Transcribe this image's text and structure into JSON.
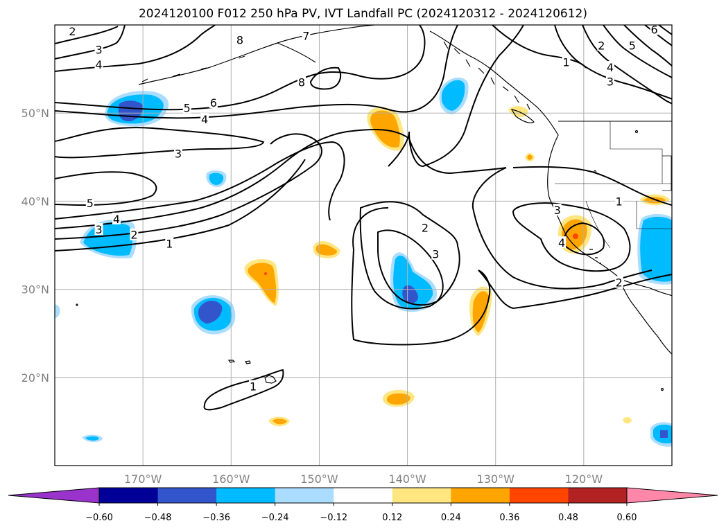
{
  "title": "2024120100 F012 250 hPa PV, IVT Landfall PC (2024120312 - 2024120612)",
  "map": {
    "lon_range": [
      -180,
      -110
    ],
    "lat_range": [
      10,
      60
    ],
    "lon_ticks": [
      {
        "lon": -170,
        "label": "170°W"
      },
      {
        "lon": -160,
        "label": "160°W"
      },
      {
        "lon": -150,
        "label": "150°W"
      },
      {
        "lon": -140,
        "label": "140°W"
      },
      {
        "lon": -130,
        "label": "130°W"
      },
      {
        "lon": -120,
        "label": "120°W"
      }
    ],
    "lat_ticks": [
      {
        "lat": 20,
        "label": "20°N"
      },
      {
        "lat": 30,
        "label": "30°N"
      },
      {
        "lat": 40,
        "label": "40°N"
      },
      {
        "lat": 50,
        "label": "50°N"
      }
    ],
    "grid": true,
    "contour_labels": [
      {
        "text": "2",
        "lon": -178,
        "lat": 59.3
      },
      {
        "text": "3",
        "lon": -175,
        "lat": 57.2
      },
      {
        "text": "4",
        "lon": -175,
        "lat": 55.5
      },
      {
        "text": "8",
        "lon": -159,
        "lat": 58.3
      },
      {
        "text": "7",
        "lon": -151.5,
        "lat": 58.8
      },
      {
        "text": "8",
        "lon": -152,
        "lat": 53.5
      },
      {
        "text": "6",
        "lon": -162,
        "lat": 51.2
      },
      {
        "text": "5",
        "lon": -165,
        "lat": 50.6
      },
      {
        "text": "4",
        "lon": -163,
        "lat": 49.3
      },
      {
        "text": "3",
        "lon": -166,
        "lat": 45.4
      },
      {
        "text": "5",
        "lon": -176,
        "lat": 39.8
      },
      {
        "text": "4",
        "lon": -173,
        "lat": 38.0
      },
      {
        "text": "3",
        "lon": -175,
        "lat": 36.8
      },
      {
        "text": "2",
        "lon": -171,
        "lat": 36.2
      },
      {
        "text": "1",
        "lon": -167,
        "lat": 35.2
      },
      {
        "text": "2",
        "lon": -138,
        "lat": 37.0
      },
      {
        "text": "3",
        "lon": -136.8,
        "lat": 34.0
      },
      {
        "text": "3",
        "lon": -123,
        "lat": 39.0
      },
      {
        "text": "1",
        "lon": -116,
        "lat": 40.0
      },
      {
        "text": "4",
        "lon": -122.5,
        "lat": 35.3
      },
      {
        "text": "2",
        "lon": -116,
        "lat": 30.8
      },
      {
        "text": "1",
        "lon": -157.5,
        "lat": 19.0
      },
      {
        "text": "1",
        "lon": -122,
        "lat": 55.8
      },
      {
        "text": "2",
        "lon": -118,
        "lat": 57.7
      },
      {
        "text": "3",
        "lon": -117,
        "lat": 53.6
      },
      {
        "text": "4",
        "lon": -117,
        "lat": 55.2
      },
      {
        "text": "5",
        "lon": -114.5,
        "lat": 57.7
      },
      {
        "text": "6",
        "lon": -112,
        "lat": 59.5
      }
    ]
  },
  "colorbar": {
    "colors": [
      "#9933cc",
      "#000099",
      "#3355cc",
      "#00bbff",
      "#aaddff",
      "#ffffff",
      "#ffe680",
      "#ffa500",
      "#ff4500",
      "#b22222",
      "#ff88aa"
    ],
    "ticks": [
      "−0.60",
      "−0.48",
      "−0.36",
      "−0.24",
      "−0.12",
      "0.12",
      "0.24",
      "0.36",
      "0.48",
      "0.60"
    ]
  }
}
